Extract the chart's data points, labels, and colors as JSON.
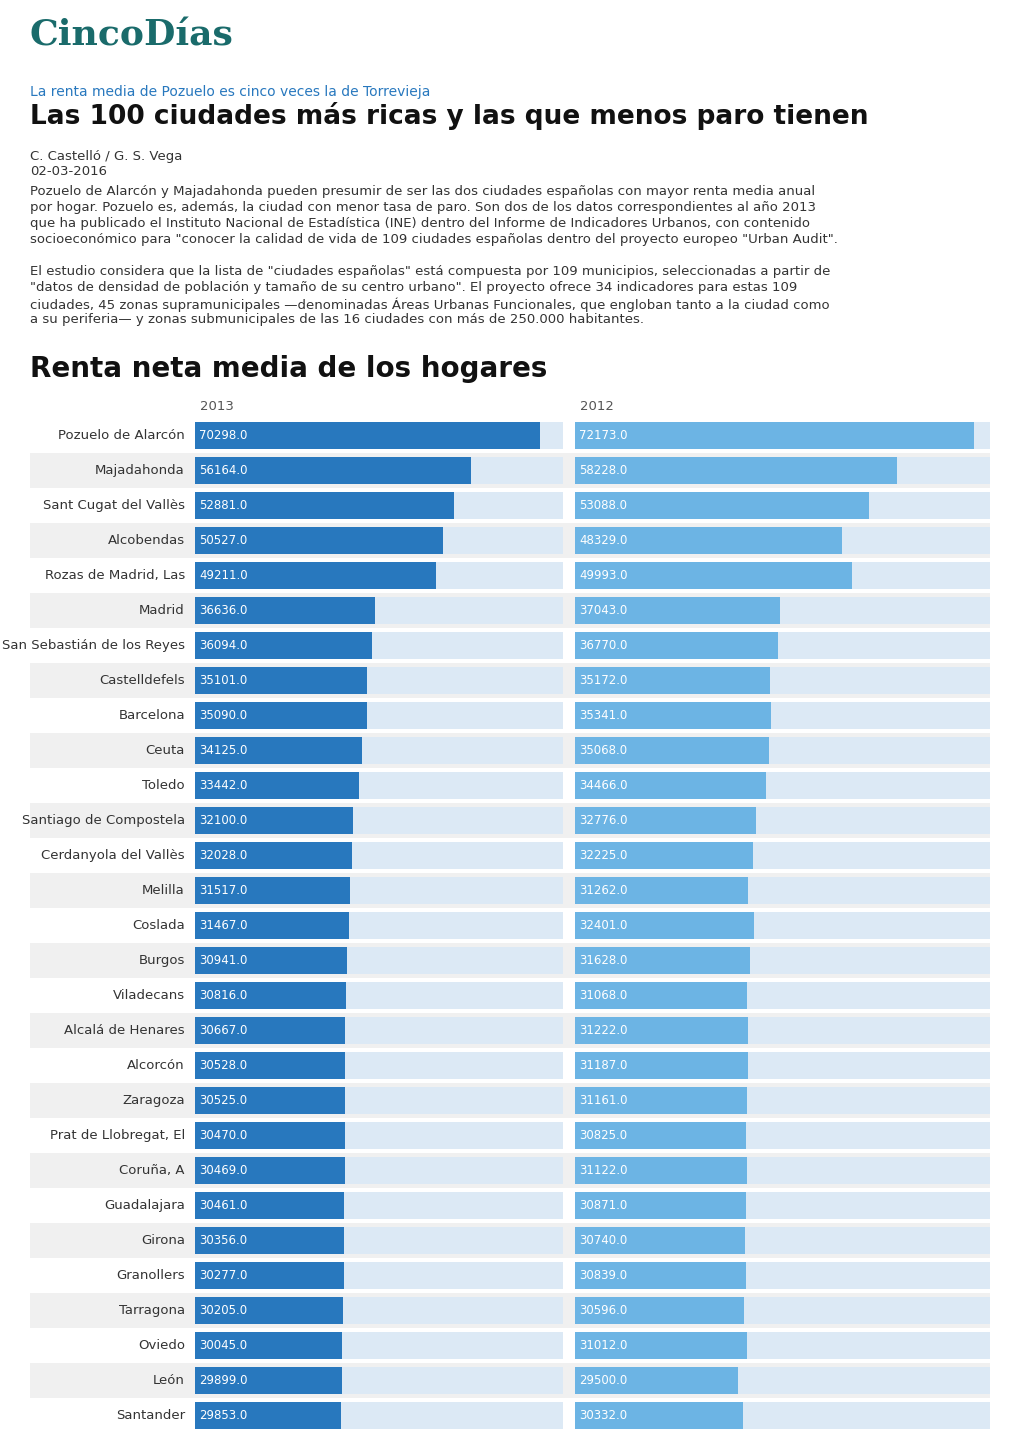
{
  "title_logo": "CincoDías",
  "subtitle_small": "La renta media de Pozuelo es cinco veces la de Torrevieja",
  "title_main": "Las 100 ciudades más ricas y las que menos paro tienen",
  "author": "C. Castelló / G. S. Vega",
  "date": "02-03-2016",
  "paragraph1": "Pozuelo de Alarcón y Majadahonda pueden presumir de ser las dos ciudades españolas con mayor renta media anual por hogar. Pozuelo es, además, la ciudad con menor tasa de paro. Son dos de los datos correspondientes al año 2013 que ha publicado el Instituto Nacional de Estadística (INE) dentro del Informe de Indicadores Urbanos, con contenido socioeconómico para \"conocer la calidad de vida de 109 ciudades españolas dentro del proyecto europeo \"Urban Audit\".",
  "paragraph2": "El estudio considera que la lista de \"ciudades españolas\" está compuesta por 109 municipios, seleccionadas a partir de \"datos de densidad de población y tamaño de su centro urbano\". El proyecto ofrece 34 indicadores para estas 109 ciudades, 45 zonas supramunicipales —denominadas Áreas Urbanas Funcionales, que engloban tanto a la ciudad como a su periferia— y zonas submunicipales de las 16 ciudades con más de 250.000 habitantes.",
  "chart_title": "Renta neta media de los hogares",
  "col2013": "2013",
  "col2012": "2012",
  "cities": [
    "Pozuelo de Alarcón",
    "Majadahonda",
    "Sant Cugat del Vallès",
    "Alcobendas",
    "Rozas de Madrid, Las",
    "Madrid",
    "San Sebastián de los Reyes",
    "Castelldefels",
    "Barcelona",
    "Ceuta",
    "Toledo",
    "Santiago de Compostela",
    "Cerdanyola del Vallès",
    "Melilla",
    "Coslada",
    "Burgos",
    "Viladecans",
    "Alcalá de Henares",
    "Alcorcón",
    "Zaragoza",
    "Prat de Llobregat, El",
    "Coruña, A",
    "Guadalajara",
    "Girona",
    "Granollers",
    "Tarragona",
    "Oviedo",
    "León",
    "Santander"
  ],
  "values_2013": [
    70298.0,
    56164.0,
    52881.0,
    50527.0,
    49211.0,
    36636.0,
    36094.0,
    35101.0,
    35090.0,
    34125.0,
    33442.0,
    32100.0,
    32028.0,
    31517.0,
    31467.0,
    30941.0,
    30816.0,
    30667.0,
    30528.0,
    30525.0,
    30470.0,
    30469.0,
    30461.0,
    30356.0,
    30277.0,
    30205.0,
    30045.0,
    29899.0,
    29853.0
  ],
  "values_2012": [
    72173.0,
    58228.0,
    53088.0,
    48329.0,
    49993.0,
    37043.0,
    36770.0,
    35172.0,
    35341.0,
    35068.0,
    34466.0,
    32776.0,
    32225.0,
    31262.0,
    32401.0,
    31628.0,
    31068.0,
    31222.0,
    31187.0,
    31161.0,
    30825.0,
    31122.0,
    30871.0,
    30740.0,
    30839.0,
    30596.0,
    31012.0,
    29500.0,
    30332.0
  ],
  "color_2013": "#2878be",
  "color_2012": "#6cb4e4",
  "color_bg_stripe": "#f0f0f0",
  "color_logo": "#1a6b6b",
  "color_subtitle": "#2878be",
  "color_title": "#111111",
  "color_text": "#333333",
  "color_chart_title": "#111111",
  "bar_max": 75000,
  "logo_fontsize": 26,
  "title_fontsize": 19,
  "subtitle_fontsize": 10,
  "chart_title_fontsize": 20,
  "body_fontsize": 9.5,
  "bar_label_fontsize": 8.5,
  "city_fontsize": 9.5,
  "col_header_fontsize": 9.5
}
